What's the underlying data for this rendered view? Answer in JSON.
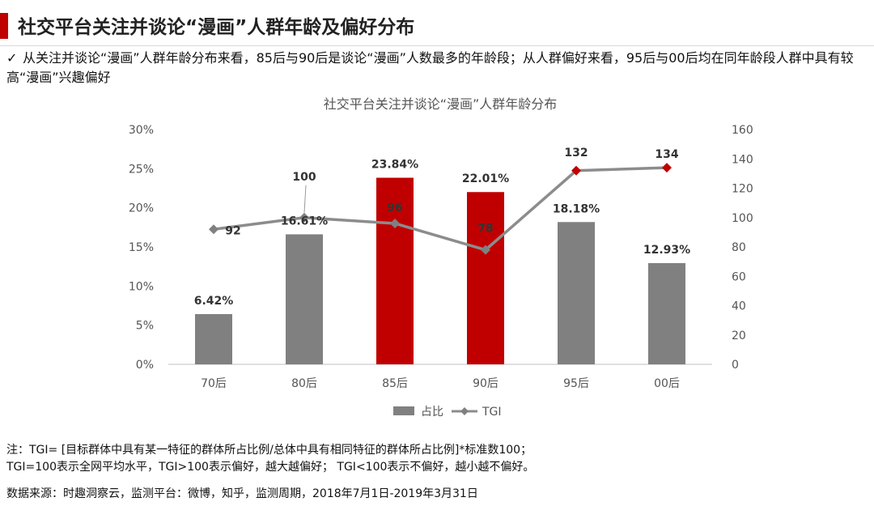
{
  "header": {
    "title": "社交平台关注并谈论“漫画”人群年龄及偏好分布",
    "accent_color": "#c00000"
  },
  "summary": {
    "check_icon": "✓",
    "text": "从关注并谈论“漫画”人群年龄分布来看，85后与90后是谈论“漫画”人数最多的年龄段；从人群偏好来看，95后与00后均在同年龄段人群中具有较高“漫画”兴趣偏好"
  },
  "chart_data": {
    "type": "bar",
    "title": "社交平台关注并谈论“漫画”人群年龄分布",
    "categories": [
      "70后",
      "80后",
      "85后",
      "90后",
      "95后",
      "00后"
    ],
    "series": [
      {
        "name": "占比",
        "kind": "bar",
        "axis": "left",
        "values": [
          6.42,
          16.61,
          23.84,
          22.01,
          18.18,
          12.93
        ],
        "labels": [
          "6.42%",
          "16.61%",
          "23.84%",
          "22.01%",
          "18.18%",
          "12.93%"
        ],
        "colors": [
          "#808080",
          "#808080",
          "#c00000",
          "#c00000",
          "#808080",
          "#808080"
        ]
      },
      {
        "name": "TGI",
        "kind": "line",
        "axis": "right",
        "values": [
          92,
          100,
          96,
          78,
          132,
          134
        ],
        "labels": [
          "92",
          "100",
          "96",
          "78",
          "132",
          "134"
        ],
        "marker_colors": [
          "#808080",
          "#808080",
          "#808080",
          "#808080",
          "#c00000",
          "#c00000"
        ],
        "line_color": "#8c8c8c"
      }
    ],
    "y_left": {
      "min": 0,
      "max": 30,
      "ticks": [
        "0%",
        "5%",
        "10%",
        "15%",
        "20%",
        "25%",
        "30%"
      ]
    },
    "y_right": {
      "min": 0,
      "max": 160,
      "ticks": [
        "0",
        "20",
        "40",
        "60",
        "80",
        "100",
        "120",
        "140",
        "160"
      ]
    },
    "legend": {
      "position": "bottom",
      "items": [
        "占比",
        "TGI"
      ]
    },
    "grid": false
  },
  "footer": {
    "note_line1": "注：TGI= [目标群体中具有某一特征的群体所占比例/总体中具有相同特征的群体所占比例]*标准数100；",
    "note_line2": "TGI=100表示全网平均水平，TGI>100表示偏好，越大越偏好； TGI<100表示不偏好，越小越不偏好。",
    "source": "数据来源：时趣洞察云，监测平台：微博，知乎，监测周期，2018年7月1日-2019年3月31日"
  }
}
